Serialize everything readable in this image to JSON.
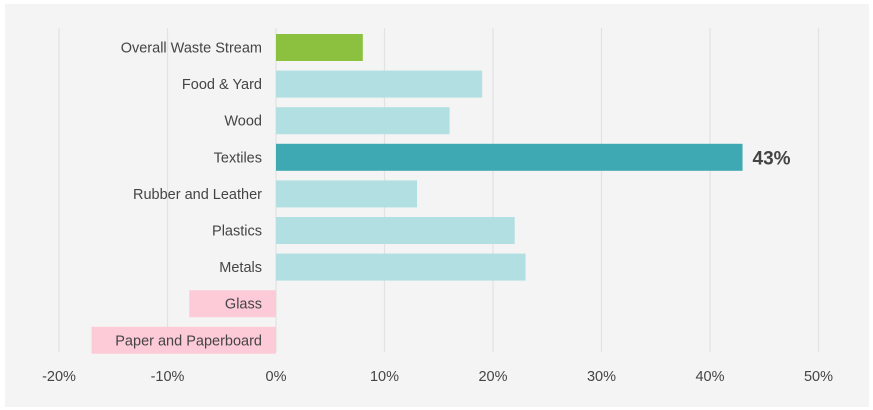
{
  "chart_data": {
    "type": "bar",
    "orientation": "horizontal",
    "categories": [
      "Overall Waste Stream",
      "Food & Yard",
      "Wood",
      "Textiles",
      "Rubber and Leather",
      "Plastics",
      "Metals",
      "Glass",
      "Paper and Paperboard"
    ],
    "values": [
      8,
      19,
      16,
      43,
      13,
      22,
      23,
      -8,
      -17
    ],
    "unit": "%",
    "xlim": [
      -20,
      50
    ],
    "xticks": [
      "-20%",
      "-10%",
      "0%",
      "10%",
      "20%",
      "30%",
      "40%",
      "50%"
    ],
    "xtick_values": [
      -20,
      -10,
      0,
      10,
      20,
      30,
      40,
      50
    ],
    "data_labels": [
      null,
      null,
      null,
      "43%",
      null,
      null,
      null,
      null,
      null
    ],
    "bar_colors": [
      "#8bc13f",
      "#b1dfe2",
      "#b1dfe2",
      "#3ea9b3",
      "#b1dfe2",
      "#b1dfe2",
      "#b1dfe2",
      "#fdcbd8",
      "#fdcbd8"
    ],
    "grid": "vertical",
    "title": "",
    "xlabel": "",
    "ylabel": ""
  },
  "colors": {
    "background": "#f4f4f4",
    "grid": "#e2e2e2",
    "text": "#444444"
  }
}
